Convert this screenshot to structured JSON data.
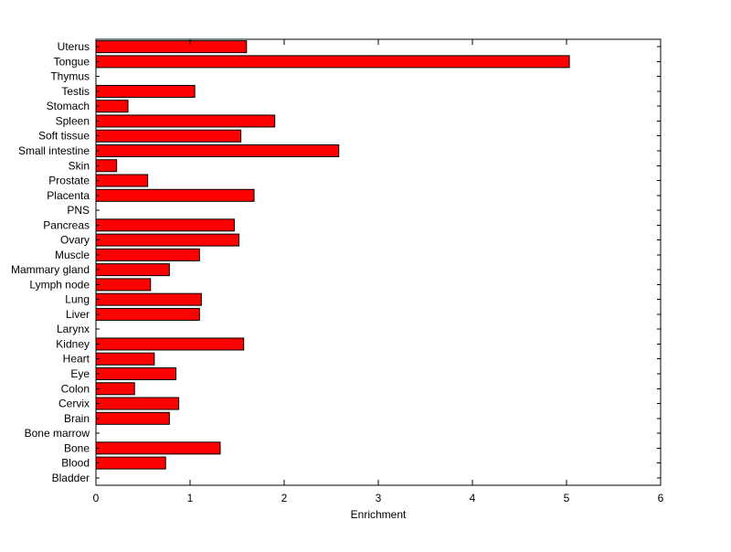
{
  "figure": {
    "background": "#ffffff",
    "axis_color": "#000000",
    "text_color": "#000000"
  },
  "chart_data": {
    "type": "bar",
    "orientation": "horizontal",
    "title": "",
    "xlabel": "Enrichment",
    "ylabel": "",
    "xlim": [
      0,
      6
    ],
    "xticks": [
      0,
      1,
      2,
      3,
      4,
      5,
      6
    ],
    "grid": false,
    "legend": null,
    "bar_color": "#ff0000",
    "bar_edge_color": "#000000",
    "categories": [
      "Uterus",
      "Tongue",
      "Thymus",
      "Testis",
      "Stomach",
      "Spleen",
      "Soft tissue",
      "Small intestine",
      "Skin",
      "Prostate",
      "Placenta",
      "PNS",
      "Pancreas",
      "Ovary",
      "Muscle",
      "Mammary gland",
      "Lymph node",
      "Lung",
      "Liver",
      "Larynx",
      "Kidney",
      "Heart",
      "Eye",
      "Colon",
      "Cervix",
      "Brain",
      "Bone marrow",
      "Bone",
      "Blood",
      "Bladder"
    ],
    "values": [
      1.6,
      5.03,
      0,
      1.05,
      0.34,
      1.9,
      1.54,
      2.58,
      0.22,
      0.55,
      1.68,
      0,
      1.47,
      1.52,
      1.1,
      0.78,
      0.58,
      1.12,
      1.1,
      0,
      1.57,
      0.62,
      0.85,
      0.41,
      0.88,
      0.78,
      0,
      1.32,
      0.74,
      0
    ]
  }
}
